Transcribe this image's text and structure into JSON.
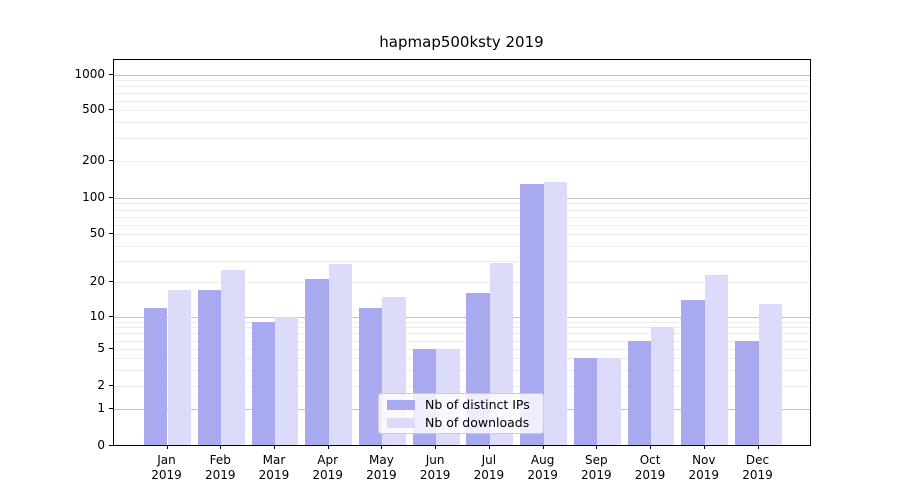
{
  "figure": {
    "title": "hapmap500ksty 2019"
  },
  "chart_data": {
    "type": "bar",
    "title": "hapmap500ksty 2019",
    "categories": [
      "Jan 2019",
      "Feb 2019",
      "Mar 2019",
      "Apr 2019",
      "May 2019",
      "Jun 2019",
      "Jul 2019",
      "Aug 2019",
      "Sep 2019",
      "Oct 2019",
      "Nov 2019",
      "Dec 2019"
    ],
    "months": [
      "Jan",
      "Feb",
      "Mar",
      "Apr",
      "May",
      "Jun",
      "Jul",
      "Aug",
      "Sep",
      "Oct",
      "Nov",
      "Dec"
    ],
    "year_label": "2019",
    "series": [
      {
        "name": "Nb of distinct IPs",
        "color": "#a9a9f0",
        "values": [
          12,
          17,
          9,
          21,
          12,
          5,
          16,
          130,
          4,
          6,
          14,
          6
        ]
      },
      {
        "name": "Nb of downloads",
        "color": "#dcdcfa",
        "values": [
          17,
          25,
          10,
          28,
          15,
          5,
          29,
          135,
          4,
          8,
          23,
          13
        ]
      }
    ],
    "xlabel": "",
    "ylabel": "",
    "yscale": "symlog",
    "yticks": [
      0,
      1,
      2,
      5,
      10,
      20,
      50,
      100,
      200,
      500,
      1000
    ],
    "minor_gridline_values": [
      3,
      4,
      6,
      7,
      8,
      9,
      30,
      40,
      60,
      70,
      80,
      90,
      300,
      400,
      600,
      700,
      800,
      900
    ],
    "major_gridline_values": [
      1,
      10,
      100,
      1000
    ],
    "ylim": [
      0,
      1400
    ],
    "grid": "both",
    "legend_position": "lower center"
  },
  "legend": {
    "entries": [
      "Nb of distinct IPs",
      "Nb of downloads"
    ]
  }
}
